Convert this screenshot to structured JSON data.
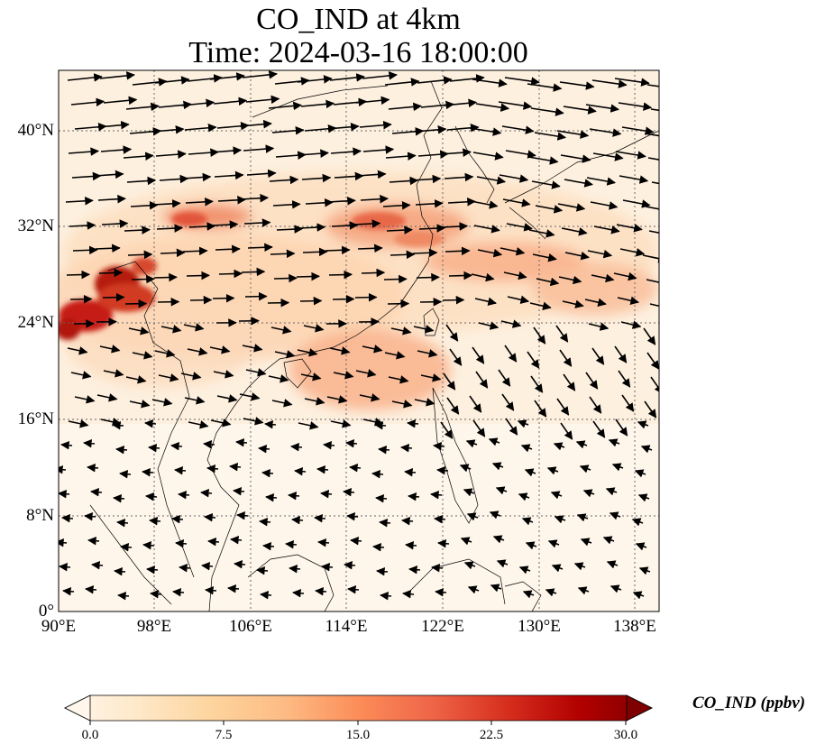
{
  "title": {
    "line1": "CO_IND at 4km",
    "line2": "Time: 2024-03-16 18:00:00"
  },
  "map": {
    "projection": "PlateCarree",
    "lon_range": [
      90,
      140
    ],
    "lat_range": [
      0,
      45
    ],
    "lat_ticks": [
      "40°N",
      "32°N",
      "24°N",
      "16°N",
      "8°N",
      "0°"
    ],
    "lon_ticks": [
      "90°E",
      "98°E",
      "106°E",
      "114°E",
      "122°E",
      "130°E",
      "138°E"
    ],
    "field": "CO_IND",
    "overlay": "wind vectors",
    "gridlines": "dotted"
  },
  "colorbar": {
    "label": "CO_IND (ppbv)",
    "colormap": "OrRd",
    "min": 0.0,
    "max": 30.0,
    "ticks": [
      "0.0",
      "7.5",
      "15.0",
      "22.5",
      "30.0"
    ],
    "extend": "both",
    "colors": [
      "#fff7ec",
      "#fee8c8",
      "#fdd49e",
      "#fdbb84",
      "#fc8d59",
      "#ef6548",
      "#d7301f",
      "#b30000",
      "#7f0000"
    ]
  }
}
